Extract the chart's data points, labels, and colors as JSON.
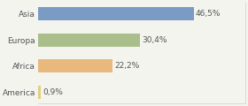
{
  "categories": [
    "Asia",
    "Europa",
    "Africa",
    "America"
  ],
  "values": [
    46.5,
    30.4,
    22.2,
    0.9
  ],
  "labels": [
    "46,5%",
    "30,4%",
    "22,2%",
    "0,9%"
  ],
  "bar_colors": [
    "#7a9cc4",
    "#aabe8c",
    "#e8b87c",
    "#e0d080"
  ],
  "background_color": "#f4f4ef",
  "xlim": [
    0,
    62
  ],
  "label_fontsize": 6.5,
  "tick_fontsize": 6.5,
  "bar_height": 0.52
}
